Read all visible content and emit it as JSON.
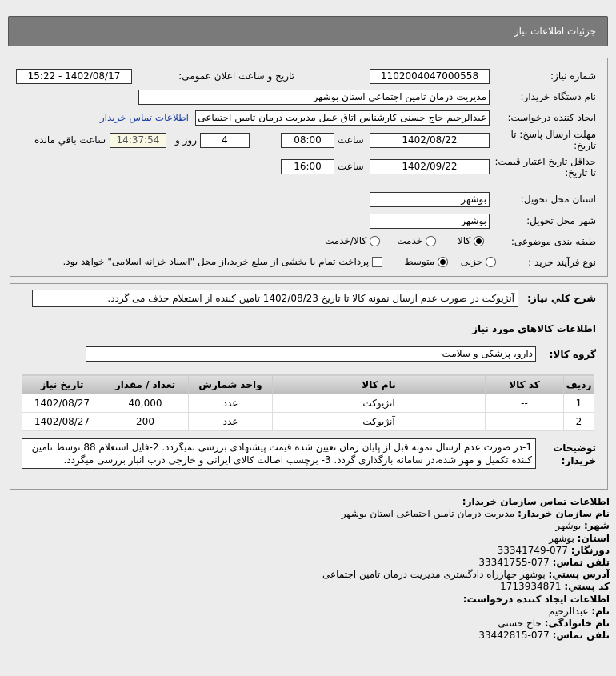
{
  "header": {
    "title": "جزئیات اطلاعات نیاز"
  },
  "form": {
    "need_number_label": "شماره نیاز:",
    "need_number": "1102004047000558",
    "announce_label": "تاریخ و ساعت اعلان عمومی:",
    "announce_value": "1402/08/17 - 15:22",
    "buyer_org_label": "نام دستگاه خریدار:",
    "buyer_org": "مدیریت درمان تامین اجتماعی استان بوشهر",
    "creator_label": "ایجاد کننده درخواست:",
    "creator": "عبدالرحیم حاج حسنی کارشناس اتاق عمل مدیریت درمان تامین اجتماعی استا",
    "contact_link": "اطلاعات تماس خریدار",
    "deadline_label": "مهلت ارسال پاسخ: تا تاریخ:",
    "deadline_date": "1402/08/22",
    "time_label": "ساعت",
    "deadline_time": "08:00",
    "days": "4",
    "days_label": "روز و",
    "remaining": "14:37:54",
    "remaining_label": "ساعت باقي مانده",
    "validity_label": "حداقل تاریخ اعتبار قیمت: تا تاریخ:",
    "validity_date": "1402/09/22",
    "validity_time": "16:00",
    "province_label": "استان محل تحویل:",
    "province": "بوشهر",
    "city_label": "شهر محل تحویل:",
    "city": "بوشهر",
    "category_label": "طبقه بندی موضوعی:",
    "category_options": [
      "کالا",
      "خدمت",
      "کالا/خدمت"
    ],
    "category_selected": "کالا",
    "process_label": "نوع فرآیند خرید :",
    "process_options": [
      "جزیی",
      "متوسط"
    ],
    "process_selected": "متوسط",
    "payment_text": "پرداخت تمام یا بخشی از مبلغ خرید،از محل \"اسناد خزانه اسلامی\" خواهد بود."
  },
  "details": {
    "summary_label": "شرح کلي نياز:",
    "summary": "آنژیوکت در صورت عدم ارسال نمونه کالا تا تاریخ 1402/08/23 تامین کننده از استعلام حذف می گردد.",
    "goods_title": "اطلاعات کالاهاي مورد نياز",
    "group_label": "گروه کالا:",
    "group": "دارو، پزشکی و سلامت",
    "table": {
      "headers": [
        "ردیف",
        "کد کالا",
        "نام کالا",
        "واحد شمارش",
        "تعداد / مقدار",
        "تاریخ نیاز"
      ],
      "rows": [
        [
          "1",
          "--",
          "آنژیوکت",
          "عدد",
          "40,000",
          "1402/08/27"
        ],
        [
          "2",
          "--",
          "آنژیوکت",
          "عدد",
          "200",
          "1402/08/27"
        ]
      ]
    },
    "notes_label": "توضیحات خریدار:",
    "notes": "1-در صورت عدم ارسال نمونه قبل از پایان زمان تعیین شده قیمت پیشنهادی بررسی نمیگردد. 2-فایل استعلام 88 توسط تامین کننده تکمیل و مهر شده،در سامانه بارگذاری گردد. 3- برچسب اصالت کالای ایرانی و خارجی درب انبار بررسی میگردد."
  },
  "contact": {
    "title": "اطلاعات تماس سازمان خریدار:",
    "org_label": "نام سازمان خریدار:",
    "org": "مدیریت درمان تامین اجتماعی استان بوشهر",
    "city_label": "شهر:",
    "city": "بوشهر",
    "province_label": "استان:",
    "province": "بوشهر",
    "fax_label": "دورنگار:",
    "fax": "077-33341749",
    "phone_label": "تلفن تماس:",
    "phone": "077-33341755",
    "address_label": "آدرس پستي:",
    "address": "بوشهر چهارراه دادگستری مدیریت درمان تامین اجتماعی",
    "postal_label": "کد پستي:",
    "postal": "1713934871",
    "creator_title": "اطلاعات ایجاد کننده درخواست:",
    "name_label": "نام:",
    "name": "عبدالرحیم",
    "family_label": "نام خانوادگی:",
    "family": "حاج حسنی",
    "creator_phone_label": "تلفن تماس:",
    "creator_phone": "077-33442815"
  }
}
